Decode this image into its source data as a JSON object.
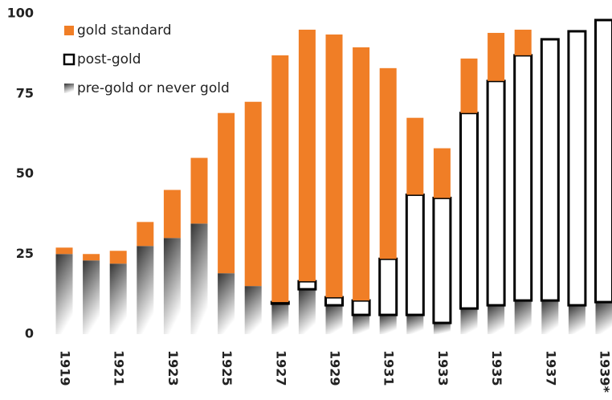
{
  "chart_data": {
    "type": "stacked_bar",
    "categories": [
      "1919",
      null,
      "1921",
      null,
      "1923",
      null,
      "1925",
      null,
      "1927",
      null,
      "1929",
      null,
      "1931",
      null,
      "1933",
      null,
      "1935",
      null,
      "1937",
      null,
      "1939*"
    ],
    "series": [
      {
        "name": "pre-gold or never gold",
        "color": "#555555",
        "values": [
          25,
          23,
          22,
          27.5,
          30,
          34.5,
          19,
          15,
          9.5,
          14,
          9,
          6,
          6,
          6,
          3.5,
          8,
          9,
          10.5,
          10.5,
          9,
          10
        ]
      },
      {
        "name": "post-gold",
        "color": "#ffffff",
        "values": [
          0,
          0,
          0,
          0,
          0,
          0,
          0,
          0,
          0.5,
          2.5,
          2.5,
          4.5,
          17.5,
          37.5,
          39,
          61,
          70,
          76.5,
          81.5,
          85.5,
          88
        ]
      },
      {
        "name": "gold standard",
        "color": "#f07e26",
        "values": [
          2,
          2,
          4,
          7.5,
          15,
          20.5,
          50,
          57.5,
          77,
          78.5,
          82,
          79,
          59.5,
          24,
          15.5,
          17,
          15,
          8,
          0,
          0,
          0
        ]
      }
    ],
    "ylim": [
      0,
      100
    ],
    "yticks": [
      0,
      25,
      50,
      75,
      100
    ],
    "grid": false
  }
}
